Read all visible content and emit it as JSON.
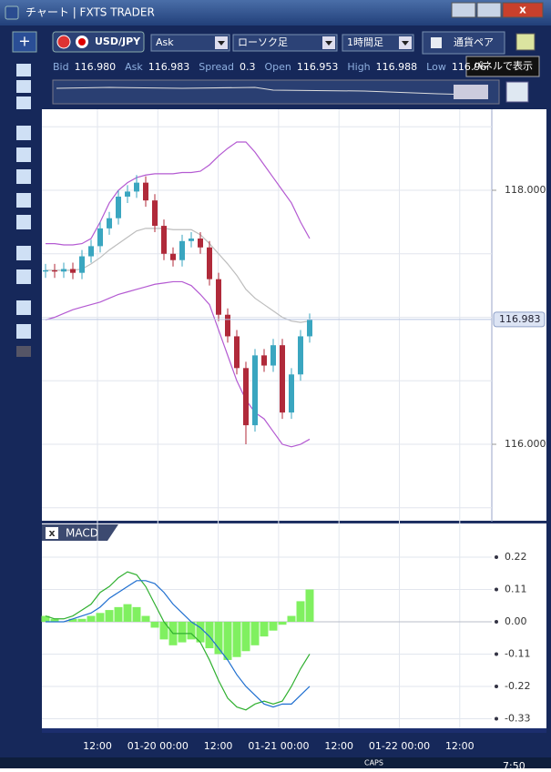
{
  "window": {
    "title": "チャート | FXTS TRADER"
  },
  "toolbar": {
    "symbol": "USD/JPY",
    "price_side": "Ask",
    "chart_kind": "ローソク足",
    "timeframe": "1時間足",
    "pair_panel": "通貨ペア",
    "tooltip": "パネルで表示"
  },
  "quote": [
    {
      "label": "Bid",
      "value": "116.980"
    },
    {
      "label": "Ask",
      "value": "116.983"
    },
    {
      "label": "Spread",
      "value": "0.3"
    },
    {
      "label": "Open",
      "value": "116.953"
    },
    {
      "label": "High",
      "value": "116.988"
    },
    {
      "label": "Low",
      "value": "116.96"
    }
  ],
  "time_axis": [
    "12:00",
    "01-20 00:00",
    "12:00",
    "01-21 00:00",
    "12:00",
    "01-22 00:00",
    "12:00"
  ],
  "taskbar": {
    "caps": "CAPS",
    "clock": "7:50"
  },
  "chart_data": [
    {
      "type": "candlestick",
      "open": [
        117.36,
        117.37,
        117.36,
        117.38,
        117.35,
        117.48,
        117.56,
        117.7,
        117.78,
        117.95,
        117.99,
        118.06,
        117.92,
        117.72,
        117.5,
        117.45,
        117.6,
        117.62,
        117.55,
        117.3,
        117.02,
        116.85,
        116.6,
        116.15,
        116.7,
        116.62,
        116.78,
        116.25,
        116.55,
        116.85
      ],
      "high": [
        117.42,
        117.42,
        117.43,
        117.43,
        117.53,
        117.61,
        117.75,
        117.83,
        118.0,
        118.04,
        118.12,
        118.11,
        117.97,
        117.77,
        117.55,
        117.65,
        117.67,
        117.67,
        117.6,
        117.35,
        117.07,
        116.9,
        116.65,
        116.75,
        116.75,
        116.83,
        116.83,
        116.6,
        116.9,
        117.03
      ],
      "low": [
        117.31,
        117.31,
        117.31,
        117.3,
        117.3,
        117.43,
        117.51,
        117.65,
        117.73,
        117.9,
        117.94,
        117.87,
        117.67,
        117.45,
        117.4,
        117.4,
        117.55,
        117.5,
        117.25,
        116.97,
        116.8,
        116.55,
        116.0,
        116.1,
        116.57,
        116.57,
        116.2,
        116.2,
        116.5,
        116.8
      ],
      "close": [
        117.37,
        117.36,
        117.38,
        117.35,
        117.48,
        117.56,
        117.7,
        117.78,
        117.95,
        117.99,
        118.06,
        117.92,
        117.72,
        117.5,
        117.45,
        117.6,
        117.62,
        117.55,
        117.3,
        117.02,
        116.85,
        116.6,
        116.15,
        116.7,
        116.62,
        116.78,
        116.25,
        116.55,
        116.85,
        116.98
      ],
      "up_color": "#3aa6c0",
      "down_color": "#b02a3a",
      "series": [
        {
          "color": "#b45ad2",
          "values": [
            117.58,
            117.58,
            117.57,
            117.57,
            117.58,
            117.62,
            117.75,
            117.9,
            118.0,
            118.06,
            118.1,
            118.12,
            118.13,
            118.13,
            118.13,
            118.14,
            118.14,
            118.15,
            118.2,
            118.27,
            118.33,
            118.38,
            118.38,
            118.3,
            118.2,
            118.1,
            118.0,
            117.9,
            117.75,
            117.62
          ]
        },
        {
          "color": "#bdbdbd",
          "values": [
            117.37,
            117.37,
            117.37,
            117.37,
            117.38,
            117.42,
            117.47,
            117.53,
            117.58,
            117.63,
            117.68,
            117.7,
            117.7,
            117.7,
            117.69,
            117.69,
            117.69,
            117.65,
            117.58,
            117.5,
            117.42,
            117.33,
            117.22,
            117.15,
            117.1,
            117.05,
            117.0,
            116.97,
            116.96,
            116.97
          ]
        },
        {
          "color": "#b45ad2",
          "values": [
            116.98,
            117.0,
            117.03,
            117.06,
            117.08,
            117.1,
            117.12,
            117.15,
            117.18,
            117.2,
            117.22,
            117.24,
            117.26,
            117.27,
            117.28,
            117.28,
            117.25,
            117.18,
            117.1,
            116.9,
            116.7,
            116.5,
            116.35,
            116.25,
            116.2,
            116.1,
            116.0,
            115.98,
            116.0,
            116.04
          ]
        }
      ],
      "ylim": [
        115.398,
        118.638
      ],
      "yticks": [
        {
          "value": 118,
          "label": "118.000"
        },
        {
          "value": 116,
          "label": "116.000"
        }
      ],
      "grid_lines": [
        118.5,
        118,
        117.5,
        117,
        116.5,
        116,
        115.5
      ],
      "last_price": {
        "value": 116.983,
        "label": "116.983"
      }
    },
    {
      "type": "macd",
      "title": "MACD",
      "histogram": [
        0.02,
        0.01,
        0.0,
        0.01,
        0.01,
        0.02,
        0.03,
        0.04,
        0.05,
        0.06,
        0.05,
        0.02,
        -0.02,
        -0.06,
        -0.08,
        -0.07,
        -0.06,
        -0.07,
        -0.09,
        -0.11,
        -0.13,
        -0.12,
        -0.1,
        -0.08,
        -0.05,
        -0.03,
        -0.01,
        0.02,
        0.07,
        0.11
      ],
      "histogram_color": "#80f060",
      "series": [
        {
          "color": "#30b030",
          "values": [
            0.02,
            0.01,
            0.01,
            0.02,
            0.04,
            0.06,
            0.1,
            0.12,
            0.15,
            0.17,
            0.16,
            0.12,
            0.06,
            0.0,
            -0.04,
            -0.04,
            -0.04,
            -0.07,
            -0.13,
            -0.2,
            -0.26,
            -0.29,
            -0.3,
            -0.28,
            -0.27,
            -0.28,
            -0.27,
            -0.22,
            -0.16,
            -0.11
          ]
        },
        {
          "color": "#1f6fd0",
          "values": [
            0.0,
            0.0,
            0.0,
            0.01,
            0.02,
            0.03,
            0.05,
            0.08,
            0.1,
            0.12,
            0.14,
            0.14,
            0.13,
            0.1,
            0.06,
            0.03,
            0.0,
            -0.02,
            -0.05,
            -0.09,
            -0.13,
            -0.18,
            -0.22,
            -0.25,
            -0.28,
            -0.29,
            -0.28,
            -0.28,
            -0.25,
            -0.22
          ]
        }
      ],
      "ylim": [
        -0.3626,
        0.3316
      ],
      "yticks": [
        0.22,
        0.11,
        {
          "value": 0,
          "label": "0.00"
        },
        -0.11,
        -0.22,
        -0.33
      ]
    }
  ]
}
